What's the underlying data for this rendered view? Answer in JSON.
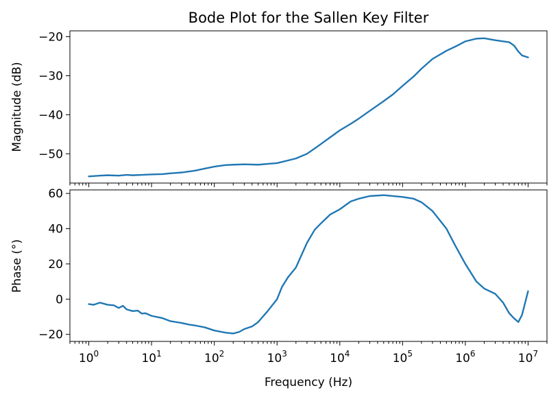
{
  "chart_data": [
    {
      "type": "line",
      "title": "Bode Plot for the Sallen Key Filter",
      "xlabel": "",
      "ylabel": "Magnitude (dB)",
      "xscale": "log",
      "xlim": [
        0.5,
        20000000
      ],
      "ylim": [
        -57.5,
        -18.5
      ],
      "yticks": [
        -20,
        -30,
        -40,
        -50
      ],
      "ytick_labels": [
        "−20",
        "−30",
        "−40",
        "−50"
      ],
      "xtick_labels_shown": false,
      "grid": false,
      "color": "#1f77b4",
      "series": [
        {
          "x": [
            1,
            1.5,
            2,
            3,
            4,
            5,
            7,
            10,
            15,
            20,
            30,
            50,
            70,
            100,
            150,
            200,
            300,
            500,
            700,
            1000,
            1500,
            2000,
            3000,
            4000,
            5000,
            7000,
            10000,
            15000,
            20000,
            30000,
            50000,
            70000,
            100000,
            150000,
            200000,
            300000,
            500000,
            700000,
            1000000,
            1500000,
            2000000,
            3000000,
            5000000,
            6000000,
            7000000,
            8000000,
            10000000
          ],
          "y": [
            -55.8,
            -55.6,
            -55.5,
            -55.6,
            -55.4,
            -55.5,
            -55.4,
            -55.3,
            -55.2,
            -55.0,
            -54.8,
            -54.3,
            -53.8,
            -53.3,
            -52.9,
            -52.8,
            -52.7,
            -52.8,
            -52.6,
            -52.4,
            -51.7,
            -51.2,
            -50.0,
            -48.6,
            -47.5,
            -45.8,
            -44.0,
            -42.3,
            -41.0,
            -39.0,
            -36.5,
            -34.8,
            -32.6,
            -30.2,
            -28.2,
            -25.7,
            -23.6,
            -22.5,
            -21.2,
            -20.5,
            -20.4,
            -20.9,
            -21.4,
            -22.3,
            -23.8,
            -24.8,
            -25.3
          ]
        }
      ]
    },
    {
      "type": "line",
      "title": "",
      "xlabel": "Frequency (Hz)",
      "ylabel": "Phase (°)",
      "xscale": "log",
      "xlim": [
        0.5,
        20000000
      ],
      "ylim": [
        -24,
        62
      ],
      "yticks": [
        60,
        40,
        20,
        0,
        -20
      ],
      "ytick_labels": [
        "60",
        "40",
        "20",
        "0",
        "−20"
      ],
      "xticks": [
        1,
        10,
        100,
        1000,
        10000,
        100000,
        1000000,
        10000000
      ],
      "xtick_labels": [
        {
          "base": "10",
          "exp": "0"
        },
        {
          "base": "10",
          "exp": "1"
        },
        {
          "base": "10",
          "exp": "2"
        },
        {
          "base": "10",
          "exp": "3"
        },
        {
          "base": "10",
          "exp": "4"
        },
        {
          "base": "10",
          "exp": "5"
        },
        {
          "base": "10",
          "exp": "6"
        },
        {
          "base": "10",
          "exp": "7"
        }
      ],
      "grid": false,
      "color": "#1f77b4",
      "series": [
        {
          "x": [
            1,
            1.2,
            1.5,
            2,
            2.5,
            3,
            3.5,
            4,
            5,
            6,
            7,
            8,
            10,
            15,
            20,
            30,
            40,
            50,
            70,
            100,
            150,
            200,
            250,
            300,
            400,
            500,
            700,
            1000,
            1200,
            1500,
            2000,
            3000,
            4000,
            5000,
            7000,
            10000,
            15000,
            20000,
            30000,
            50000,
            70000,
            100000,
            150000,
            200000,
            300000,
            500000,
            700000,
            1000000,
            1500000,
            2000000,
            3000000,
            4000000,
            5000000,
            6000000,
            7000000,
            8000000,
            10000000
          ],
          "y": [
            -2.8,
            -3.2,
            -2.0,
            -3.2,
            -3.5,
            -5.0,
            -3.8,
            -5.8,
            -6.8,
            -6.5,
            -8.2,
            -8.0,
            -9.5,
            -10.8,
            -12.5,
            -13.5,
            -14.5,
            -15.0,
            -16.0,
            -17.8,
            -19.0,
            -19.5,
            -18.6,
            -17.0,
            -15.5,
            -13.0,
            -7.0,
            0.0,
            7.0,
            12.5,
            18.0,
            32.0,
            39.5,
            43.0,
            48.0,
            51.0,
            55.5,
            57.0,
            58.5,
            59.0,
            58.5,
            58.0,
            57.0,
            55.0,
            50.0,
            40.0,
            30.0,
            20.0,
            10.0,
            6.0,
            3.0,
            -2.0,
            -8.0,
            -11.0,
            -13.0,
            -9.0,
            4.5
          ]
        }
      ]
    }
  ]
}
